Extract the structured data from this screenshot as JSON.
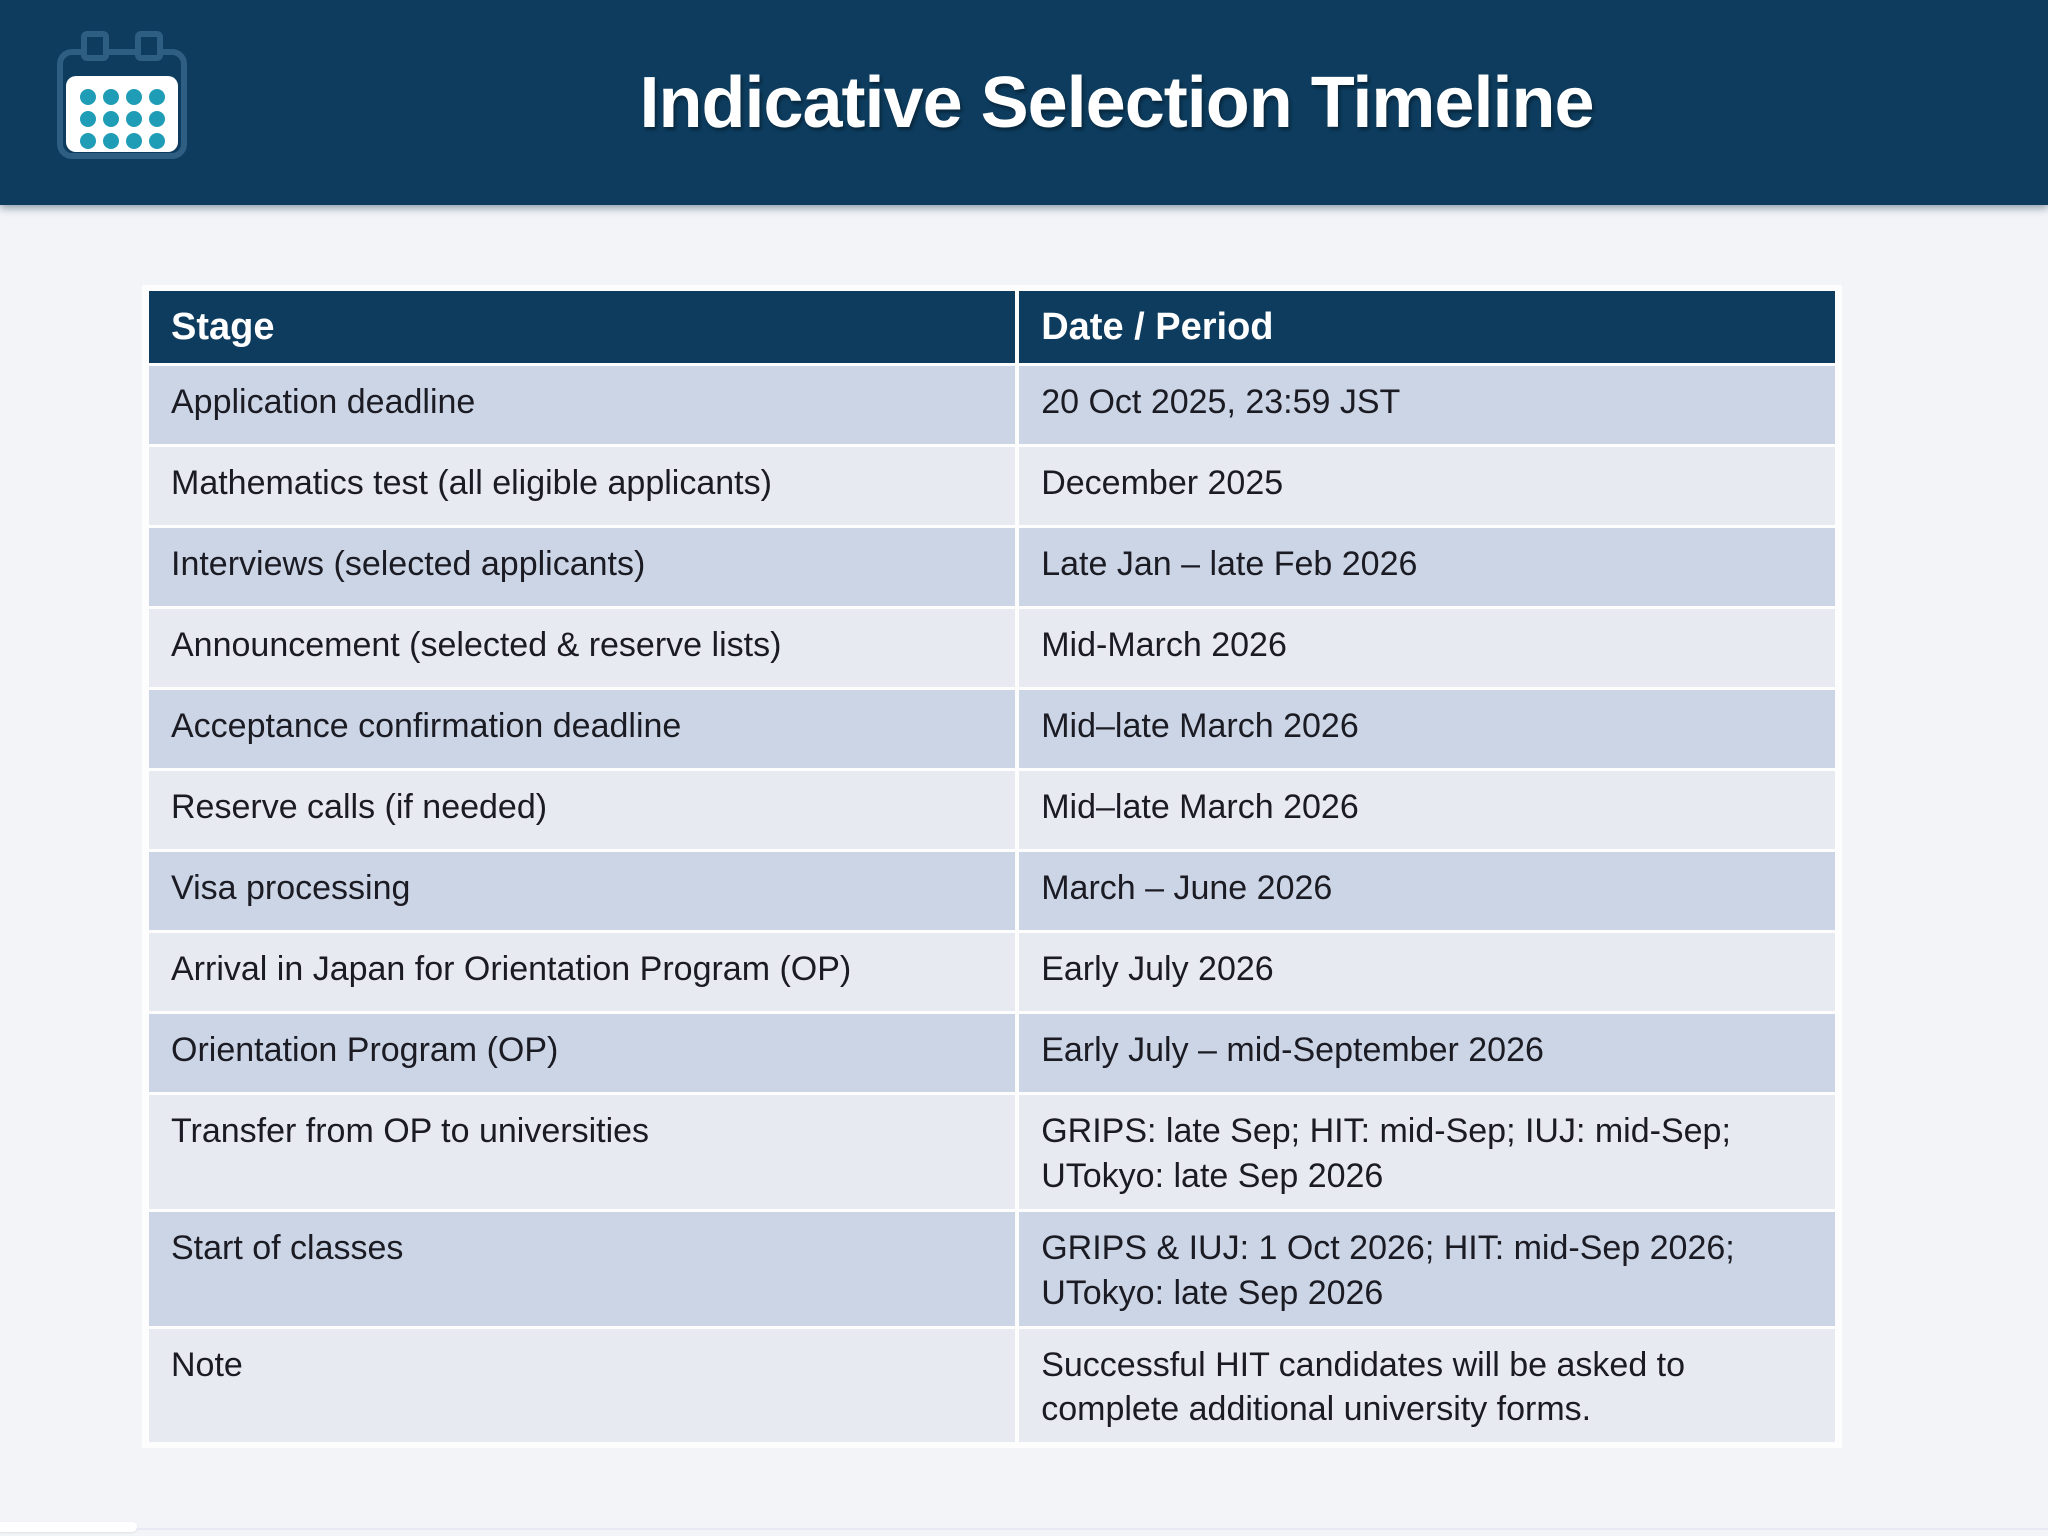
{
  "header": {
    "title": "Indicative Selection Timeline",
    "icon": "calendar-icon"
  },
  "colors": {
    "banner_navy": "#0d3c5e",
    "icon_teal": "#1f9db6",
    "row_odd": "#ccd5e5",
    "row_even": "#e7eaf0",
    "header_text": "#ffffff",
    "cell_text": "#1b1b24",
    "page_background": "#f2f4f8"
  },
  "table": {
    "columns": [
      "Stage",
      "Date / Period"
    ],
    "rows": [
      {
        "stage": "Application deadline",
        "date": "20 Oct 2025, 23:59 JST"
      },
      {
        "stage": "Mathematics test (all eligible applicants)",
        "date": "December 2025"
      },
      {
        "stage": "Interviews (selected applicants)",
        "date": "Late Jan – late Feb 2026"
      },
      {
        "stage": "Announcement (selected & reserve lists)",
        "date": "Mid-March 2026"
      },
      {
        "stage": "Acceptance confirmation deadline",
        "date": "Mid–late March 2026"
      },
      {
        "stage": "Reserve calls (if needed)",
        "date": "Mid–late March 2026"
      },
      {
        "stage": "Visa processing",
        "date": "March – June 2026"
      },
      {
        "stage": "Arrival in Japan for Orientation Program (OP)",
        "date": "Early July 2026"
      },
      {
        "stage": "Orientation Program (OP)",
        "date": "Early July – mid-September 2026"
      },
      {
        "stage": "Transfer from OP to universities",
        "date": "GRIPS: late Sep; HIT: mid-Sep; IUJ: mid-Sep; UTokyo: late Sep 2026"
      },
      {
        "stage": "Start of classes",
        "date": "GRIPS & IUJ: 1 Oct 2026; HIT: mid-Sep 2026; UTokyo: late Sep 2026"
      },
      {
        "stage": "Note",
        "date": "Successful HIT candidates will be asked to complete additional university forms."
      }
    ]
  }
}
